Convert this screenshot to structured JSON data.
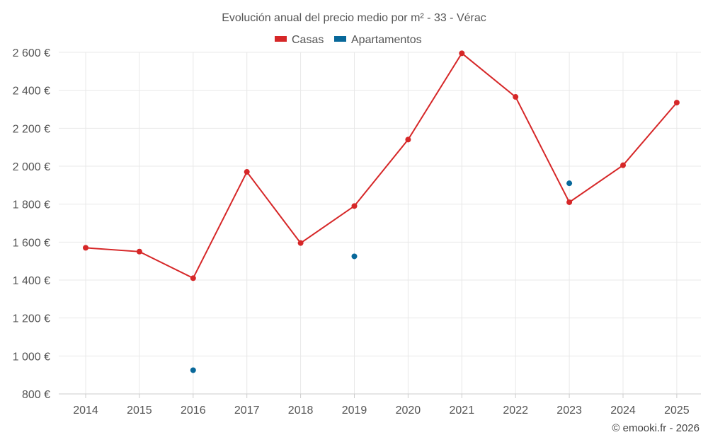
{
  "chart_data": {
    "type": "line",
    "title": "Evolución anual del precio medio por m² - 33 - Vérac",
    "categories": [
      "2014",
      "2015",
      "2016",
      "2017",
      "2018",
      "2019",
      "2020",
      "2021",
      "2022",
      "2023",
      "2024",
      "2025"
    ],
    "series": [
      {
        "name": "Casas",
        "color": "#d62728",
        "values": [
          1570,
          1550,
          1410,
          1970,
          1595,
          1790,
          2140,
          2595,
          2365,
          1810,
          2005,
          2335
        ]
      },
      {
        "name": "Apartamentos",
        "color": "#08689a",
        "values": [
          null,
          null,
          925,
          null,
          null,
          1525,
          null,
          null,
          null,
          1910,
          null,
          null
        ]
      }
    ],
    "yticks": [
      "800 €",
      "1 000 €",
      "1 200 €",
      "1 400 €",
      "1 600 €",
      "1 800 €",
      "2 000 €",
      "2 200 €",
      "2 400 €",
      "2 600 €"
    ],
    "ylim": [
      800,
      2600
    ],
    "grid": true,
    "legend_position": "top-center",
    "xlabel": "",
    "ylabel": ""
  },
  "credit": "© emooki.fr - 2026"
}
